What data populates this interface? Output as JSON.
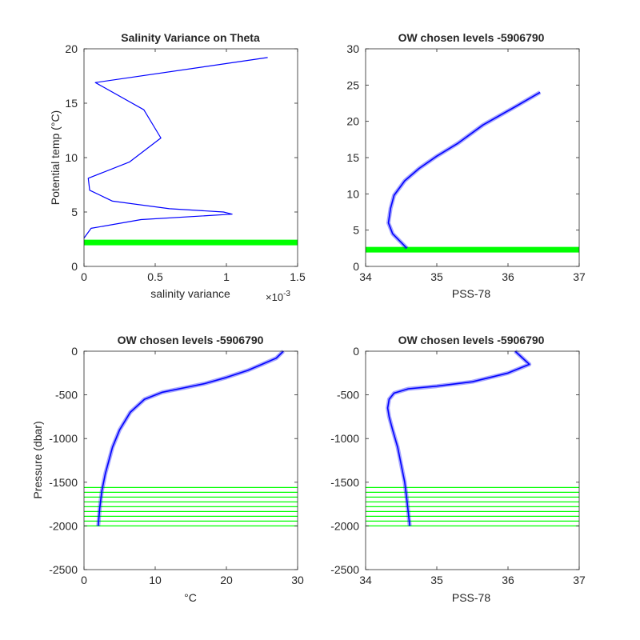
{
  "colors": {
    "profile": "#0000ff",
    "level": "#00ff00",
    "axis": "#262626"
  },
  "chart_data": [
    {
      "id": "p1",
      "type": "line",
      "title": "Salinity Variance on Theta",
      "xlabel": "salinity variance",
      "ylabel": "Potential temp (°C)",
      "x_multiplier": "×10",
      "x_multiplier_exp": "-3",
      "xlim": [
        0,
        0.0015
      ],
      "ylim": [
        0,
        20
      ],
      "xticks": [
        0,
        0.0005,
        0.001,
        0.0015
      ],
      "xticklabels": [
        "0",
        "0.5",
        "1",
        "1.5"
      ],
      "yticks": [
        0,
        5,
        10,
        15,
        20
      ],
      "yticklabels": [
        "0",
        "5",
        "10",
        "15",
        "20"
      ],
      "series": [
        {
          "x": [
            0.00129,
            8e-05,
            0.00042,
            0.00054,
            0.00032,
            3e-05,
            4e-05,
            0.0002,
            0.0006,
            0.00098,
            0.00104,
            0.0004,
            5e-05,
            0.0
          ],
          "y": [
            19.2,
            16.9,
            14.4,
            11.8,
            9.6,
            8.1,
            7.0,
            6.0,
            5.3,
            5.0,
            4.8,
            4.3,
            3.5,
            2.6
          ]
        }
      ],
      "hlines": [
        2.2
      ]
    },
    {
      "id": "p2",
      "type": "line",
      "title": "OW chosen levels -5906790",
      "xlabel": "PSS-78",
      "ylabel": "",
      "xlim": [
        34,
        37
      ],
      "ylim": [
        0,
        30
      ],
      "xticks": [
        34,
        35,
        36,
        37
      ],
      "xticklabels": [
        "34",
        "35",
        "36",
        "37"
      ],
      "yticks": [
        0,
        5,
        10,
        15,
        20,
        25,
        30
      ],
      "yticklabels": [
        "0",
        "5",
        "10",
        "15",
        "20",
        "25",
        "30"
      ],
      "series": [
        {
          "x": [
            34.58,
            34.38,
            34.32,
            34.35,
            34.4,
            34.55,
            34.75,
            35.0,
            35.3,
            35.65,
            36.1,
            36.45
          ],
          "y": [
            2.5,
            4.5,
            6.0,
            8.0,
            9.8,
            11.8,
            13.5,
            15.2,
            17.0,
            19.5,
            22.0,
            24.0
          ]
        }
      ],
      "hlines": [
        2.3
      ]
    },
    {
      "id": "p3",
      "type": "line",
      "title": "OW chosen levels -5906790",
      "xlabel": "°C",
      "ylabel": "Pressure (dbar)",
      "xlim": [
        0,
        30
      ],
      "ylim": [
        -2500,
        0
      ],
      "xticks": [
        0,
        10,
        20,
        30
      ],
      "xticklabels": [
        "0",
        "10",
        "20",
        "30"
      ],
      "yticks": [
        -2500,
        -2000,
        -1500,
        -1000,
        -500,
        0
      ],
      "yticklabels": [
        "-2500",
        "-2000",
        "-1500",
        "-1000",
        "-500",
        "0"
      ],
      "series": [
        {
          "x": [
            2.0,
            2.2,
            2.5,
            3.0,
            4.0,
            5.0,
            6.5,
            8.5,
            11.0,
            14.0,
            17.0,
            20.0,
            23.0,
            25.0,
            27.0,
            28.0
          ],
          "y": [
            -2000,
            -1800,
            -1600,
            -1400,
            -1100,
            -900,
            -700,
            -550,
            -470,
            -420,
            -370,
            -300,
            -220,
            -150,
            -80,
            0
          ]
        }
      ],
      "hlines": [
        -2000,
        -1945,
        -1890,
        -1835,
        -1780,
        -1725,
        -1670,
        -1615,
        -1560
      ]
    },
    {
      "id": "p4",
      "type": "line",
      "title": "OW chosen levels -5906790",
      "xlabel": "PSS-78",
      "ylabel": "",
      "xlim": [
        34,
        37
      ],
      "ylim": [
        -2500,
        0
      ],
      "xticks": [
        34,
        35,
        36,
        37
      ],
      "xticklabels": [
        "34",
        "35",
        "36",
        "37"
      ],
      "yticks": [
        -2500,
        -2000,
        -1500,
        -1000,
        -500,
        0
      ],
      "yticklabels": [
        "-2500",
        "-2000",
        "-1500",
        "-1000",
        "-500",
        "0"
      ],
      "series": [
        {
          "x": [
            34.62,
            34.58,
            34.55,
            34.5,
            34.45,
            34.38,
            34.33,
            34.31,
            34.33,
            34.4,
            34.6,
            35.0,
            35.5,
            36.0,
            36.3,
            36.1
          ],
          "y": [
            -2000,
            -1700,
            -1500,
            -1300,
            -1100,
            -900,
            -750,
            -650,
            -550,
            -480,
            -430,
            -400,
            -350,
            -250,
            -150,
            0
          ]
        }
      ],
      "hlines": [
        -2000,
        -1945,
        -1890,
        -1835,
        -1780,
        -1725,
        -1670,
        -1615,
        -1560
      ]
    }
  ]
}
